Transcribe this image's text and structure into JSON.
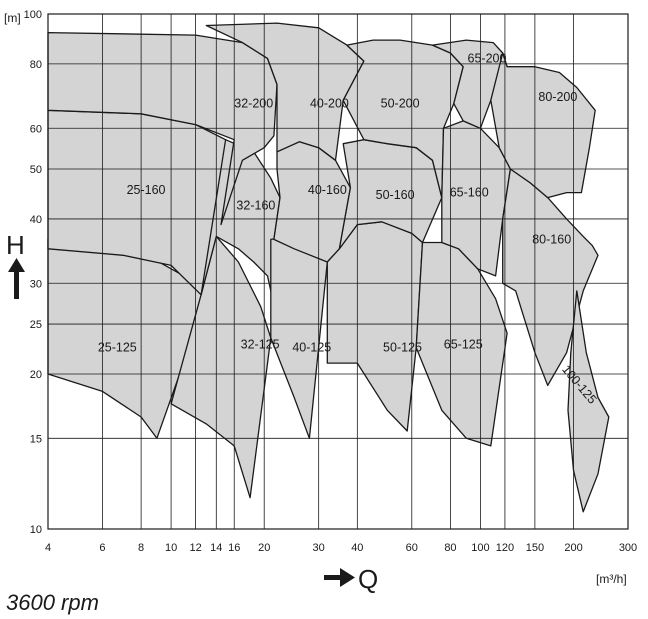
{
  "chart_data": {
    "type": "area",
    "title": "",
    "xlabel": "Q",
    "ylabel": "H",
    "x_unit": "[m³/h]",
    "y_unit": "[m]",
    "x_scale": "log",
    "y_scale": "log",
    "xlim": [
      4,
      300
    ],
    "ylim": [
      10,
      100
    ],
    "x_ticks": [
      4,
      6,
      8,
      10,
      12,
      14,
      16,
      20,
      30,
      40,
      60,
      80,
      100,
      120,
      150,
      200,
      300
    ],
    "y_ticks": [
      10,
      15,
      20,
      25,
      30,
      40,
      50,
      60,
      80,
      100
    ],
    "grid": true,
    "fill_color": "#d4d4d4",
    "speed_note": "3600 rpm",
    "regions": [
      {
        "label": "25-125",
        "lx": 6.7,
        "ly": 22.5,
        "points": [
          [
            4,
            20
          ],
          [
            6,
            18.5
          ],
          [
            8,
            16.5
          ],
          [
            9,
            15
          ],
          [
            13,
            28
          ],
          [
            11,
            31
          ],
          [
            8,
            34.5
          ],
          [
            6,
            36
          ],
          [
            4,
            36.5
          ]
        ]
      },
      {
        "label": "25-160",
        "lx": 8.3,
        "ly": 45.5,
        "points": [
          [
            4,
            35
          ],
          [
            7,
            34
          ],
          [
            10,
            32.5
          ],
          [
            12.5,
            28.5
          ],
          [
            14.5,
            39
          ],
          [
            16,
            46
          ],
          [
            17,
            52
          ],
          [
            15,
            57
          ],
          [
            12,
            61
          ],
          [
            8,
            64
          ],
          [
            4,
            65
          ]
        ]
      },
      {
        "label": "32-125",
        "lx": 19.4,
        "ly": 22.8,
        "points": [
          [
            10,
            17.5
          ],
          [
            13,
            16
          ],
          [
            16,
            14.5
          ],
          [
            18,
            11.5
          ],
          [
            21,
            23.5
          ],
          [
            19.5,
            27
          ],
          [
            16.5,
            33
          ],
          [
            14,
            37
          ],
          [
            12.5,
            28.5
          ],
          [
            10,
            17.5
          ]
        ]
      },
      {
        "label": "32-160",
        "lx": 18.8,
        "ly": 42.5,
        "points": [
          [
            14,
            37
          ],
          [
            16.5,
            35
          ],
          [
            18.5,
            33
          ],
          [
            20.5,
            31
          ],
          [
            21,
            29
          ],
          [
            21.5,
            36.5
          ],
          [
            22.5,
            44
          ],
          [
            21,
            48
          ],
          [
            18.5,
            54
          ],
          [
            15,
            57
          ],
          [
            12.5,
            28.5
          ]
        ]
      },
      {
        "label": "32-200",
        "lx": 18.5,
        "ly": 67,
        "points": [
          [
            14.5,
            39
          ],
          [
            17,
            52
          ],
          [
            20,
            55
          ],
          [
            21.5,
            58
          ],
          [
            22,
            73
          ],
          [
            20.5,
            82
          ],
          [
            17,
            88
          ],
          [
            12,
            91
          ],
          [
            4,
            92
          ],
          [
            4,
            65
          ],
          [
            8,
            64
          ],
          [
            12,
            61
          ],
          [
            16,
            57
          ]
        ]
      },
      {
        "label": "40-125",
        "lx": 28.5,
        "ly": 22.5,
        "points": [
          [
            21,
            23.5
          ],
          [
            25,
            18
          ],
          [
            28,
            15
          ],
          [
            32,
            33
          ],
          [
            30,
            36
          ],
          [
            27,
            37.5
          ],
          [
            24,
            37
          ],
          [
            21,
            36.5
          ]
        ]
      },
      {
        "label": "40-160",
        "lx": 32,
        "ly": 45.5,
        "points": [
          [
            22.5,
            44
          ],
          [
            22,
            50
          ],
          [
            22,
            54
          ],
          [
            26,
            56.5
          ],
          [
            30,
            55
          ],
          [
            34,
            52
          ],
          [
            38,
            46
          ],
          [
            35,
            35
          ],
          [
            32,
            33
          ],
          [
            25,
            35
          ],
          [
            21.5,
            36.5
          ]
        ]
      },
      {
        "label": "40-200",
        "lx": 32.5,
        "ly": 67,
        "points": [
          [
            22,
            54
          ],
          [
            22,
            73
          ],
          [
            20.5,
            82
          ],
          [
            17,
            88
          ],
          [
            13,
            95
          ],
          [
            22,
            96
          ],
          [
            30,
            94
          ],
          [
            37,
            87
          ],
          [
            42,
            81
          ],
          [
            36,
            68
          ],
          [
            34,
            52
          ],
          [
            30,
            55
          ],
          [
            26,
            56.5
          ]
        ]
      },
      {
        "label": "50-125",
        "lx": 56,
        "ly": 22.5,
        "points": [
          [
            32,
            21
          ],
          [
            40,
            21
          ],
          [
            50,
            17
          ],
          [
            58,
            15.5
          ],
          [
            62,
            22.5
          ],
          [
            65,
            36
          ],
          [
            60,
            37.5
          ],
          [
            48,
            39.5
          ],
          [
            40,
            39
          ],
          [
            35,
            35
          ],
          [
            32,
            33
          ]
        ]
      },
      {
        "label": "50-160",
        "lx": 53,
        "ly": 44.5,
        "points": [
          [
            38,
            46
          ],
          [
            35,
            35
          ],
          [
            40,
            39
          ],
          [
            48,
            39.5
          ],
          [
            60,
            37.5
          ],
          [
            65,
            36
          ],
          [
            75,
            44
          ],
          [
            70,
            52
          ],
          [
            62,
            55
          ],
          [
            50,
            56
          ],
          [
            42,
            57
          ],
          [
            36,
            56
          ]
        ]
      },
      {
        "label": "50-200",
        "lx": 55,
        "ly": 67,
        "points": [
          [
            37,
            87
          ],
          [
            45,
            89
          ],
          [
            55,
            89
          ],
          [
            70,
            87
          ],
          [
            80,
            84
          ],
          [
            88,
            79
          ],
          [
            82,
            67
          ],
          [
            76,
            60
          ],
          [
            75,
            44
          ],
          [
            70,
            52
          ],
          [
            62,
            55
          ],
          [
            50,
            56
          ],
          [
            42,
            57
          ],
          [
            36,
            68
          ],
          [
            42,
            81
          ]
        ]
      },
      {
        "label": "65-125",
        "lx": 88,
        "ly": 22.8,
        "points": [
          [
            62,
            22.5
          ],
          [
            75,
            17
          ],
          [
            90,
            15
          ],
          [
            108,
            14.5
          ],
          [
            122,
            24
          ],
          [
            112,
            28
          ],
          [
            98,
            32
          ],
          [
            85,
            35
          ],
          [
            75,
            36
          ],
          [
            65,
            36
          ]
        ]
      },
      {
        "label": "65-160",
        "lx": 92,
        "ly": 45,
        "points": [
          [
            75,
            44
          ],
          [
            76,
            60
          ],
          [
            88,
            62
          ],
          [
            100,
            60
          ],
          [
            115,
            55
          ],
          [
            125,
            50
          ],
          [
            118,
            40
          ],
          [
            112,
            31
          ],
          [
            98,
            32
          ],
          [
            85,
            35
          ],
          [
            75,
            36
          ]
        ]
      },
      {
        "label": "65-200",
        "lx": 105,
        "ly": 82,
        "points": [
          [
            88,
            79
          ],
          [
            80,
            84
          ],
          [
            70,
            87
          ],
          [
            90,
            89
          ],
          [
            110,
            88
          ],
          [
            118,
            84
          ],
          [
            122,
            79
          ],
          [
            108,
            68
          ],
          [
            100,
            60
          ],
          [
            88,
            62
          ],
          [
            82,
            67
          ]
        ]
      },
      {
        "label": "80-160",
        "lx": 170,
        "ly": 36.5,
        "points": [
          [
            125,
            50
          ],
          [
            145,
            47
          ],
          [
            165,
            44
          ],
          [
            190,
            40
          ],
          [
            215,
            37
          ],
          [
            230,
            35.5
          ],
          [
            240,
            34
          ],
          [
            215,
            29
          ],
          [
            190,
            22
          ],
          [
            165,
            19
          ],
          [
            150,
            22
          ],
          [
            130,
            29
          ],
          [
            118,
            30
          ],
          [
            118,
            40
          ]
        ]
      },
      {
        "label": "80-200",
        "lx": 178,
        "ly": 69,
        "points": [
          [
            118,
            84
          ],
          [
            122,
            79
          ],
          [
            150,
            79
          ],
          [
            180,
            77
          ],
          [
            205,
            72
          ],
          [
            235,
            65
          ],
          [
            225,
            55
          ],
          [
            212,
            45
          ],
          [
            190,
            45
          ],
          [
            165,
            44
          ],
          [
            145,
            47
          ],
          [
            125,
            50
          ],
          [
            115,
            55
          ],
          [
            108,
            68
          ]
        ]
      },
      {
        "label": "100-125",
        "lx": 204,
        "ly": 19.2,
        "points": [
          [
            205,
            29
          ],
          [
            220,
            22
          ],
          [
            240,
            18
          ],
          [
            260,
            16.5
          ],
          [
            240,
            12.8
          ],
          [
            215,
            10.8
          ],
          [
            200,
            13
          ],
          [
            192,
            17
          ],
          [
            196,
            22
          ]
        ]
      }
    ]
  }
}
